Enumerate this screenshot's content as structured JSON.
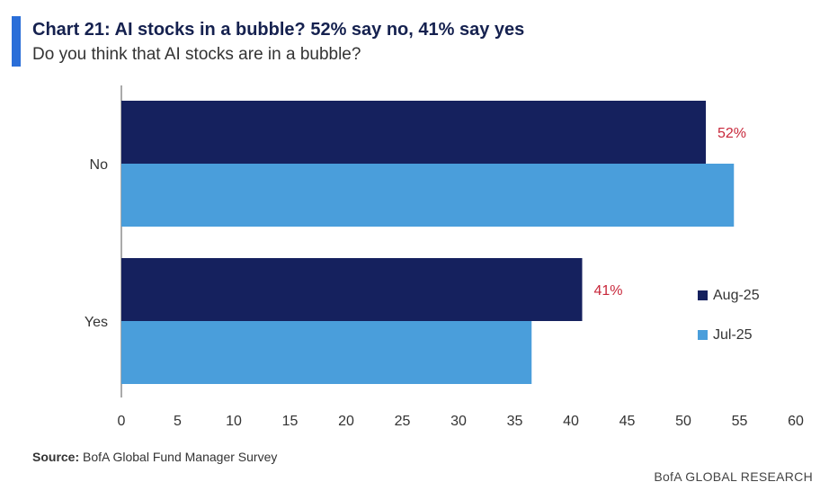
{
  "header": {
    "title": "Chart 21: AI stocks in a bubble? 52% say no, 41% say yes",
    "subtitle": "Do you think that AI stocks are in a bubble?"
  },
  "chart_data": {
    "type": "bar",
    "orientation": "horizontal",
    "categories": [
      "No",
      "Yes"
    ],
    "series": [
      {
        "name": "Aug-25",
        "color": "#15215e",
        "values": [
          52,
          41
        ],
        "labels": [
          "52%",
          "41%"
        ]
      },
      {
        "name": "Jul-25",
        "color": "#4a9edb",
        "values": [
          54.5,
          36.5
        ],
        "labels": [
          "",
          ""
        ]
      }
    ],
    "xlim": [
      0,
      60
    ],
    "xticks": [
      0,
      5,
      10,
      15,
      20,
      25,
      30,
      35,
      40,
      45,
      50,
      55,
      60
    ],
    "legend_position": "right",
    "label_color": "#c8283b"
  },
  "footer": {
    "source_label": "Source:",
    "source_text": "BofA Global Fund Manager Survey",
    "brand": "BofA GLOBAL RESEARCH"
  }
}
